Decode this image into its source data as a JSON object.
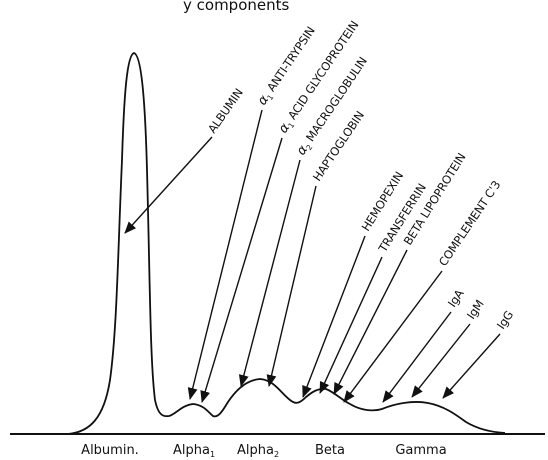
{
  "title_fragment": "y components",
  "labels": [
    {
      "id": "albumin",
      "prefix": "",
      "sub": "",
      "text": "ALBUMIN"
    },
    {
      "id": "a1-antitrypsin",
      "prefix": "α",
      "sub": "1",
      "text": " ANTI-TRYPSIN"
    },
    {
      "id": "a1-acid-glycoprotein",
      "prefix": "α",
      "sub": "1",
      "text": " ACID GLYCOPROTEIN"
    },
    {
      "id": "a2-macroglobulin",
      "prefix": "α",
      "sub": "2",
      "text": " MACROGLOBULIN"
    },
    {
      "id": "haptoglobin",
      "prefix": "",
      "sub": "",
      "text": "HAPTOGLOBIN"
    },
    {
      "id": "hemopexin",
      "prefix": "",
      "sub": "",
      "text": "HEMOPEXIN"
    },
    {
      "id": "transferrin",
      "prefix": "",
      "sub": "",
      "text": "TRANSFERRIN"
    },
    {
      "id": "beta-lipoprotein",
      "prefix": "",
      "sub": "",
      "text": "BETA LIPOPROTEIN"
    },
    {
      "id": "complement-c3",
      "prefix": "",
      "sub": "",
      "text": "COMPLEMENT C'3"
    },
    {
      "id": "iga",
      "prefix": "",
      "sub": "",
      "text": "IgA"
    },
    {
      "id": "igm",
      "prefix": "",
      "sub": "",
      "text": "IgM"
    },
    {
      "id": "igg",
      "prefix": "",
      "sub": "",
      "text": "IgG"
    }
  ],
  "regions": [
    {
      "id": "albumin",
      "base": "Albumin.",
      "sub": ""
    },
    {
      "id": "alpha1",
      "base": "Alpha",
      "sub": "1"
    },
    {
      "id": "alpha2",
      "base": "Alpha",
      "sub": "2"
    },
    {
      "id": "beta",
      "base": "Beta",
      "sub": ""
    },
    {
      "id": "gamma",
      "base": "Gamma",
      "sub": ""
    }
  ]
}
